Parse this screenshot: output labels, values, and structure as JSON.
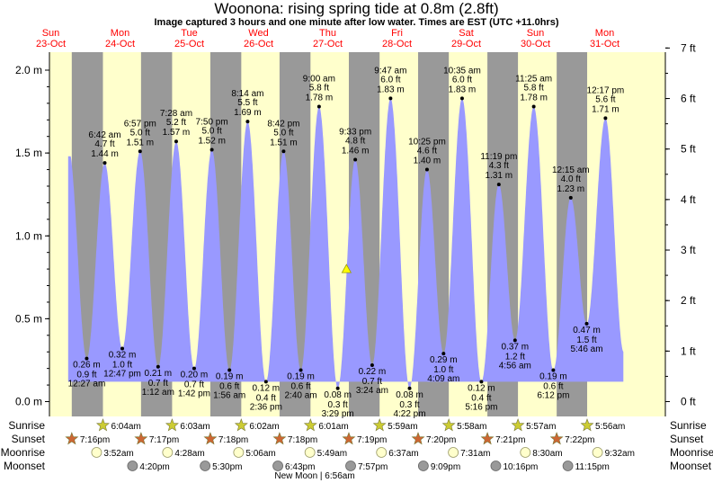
{
  "title": "Woonona: rising  spring tide at 0.8m (2.8ft)",
  "subtitle": "Image captured 3 hours and one minute after low water. Times are EST (UTC +11.0hrs)",
  "colors": {
    "day": "#ffffcc",
    "night": "#999999",
    "tide": "#9999ff",
    "date_label": "#ff0000",
    "capture_marker": "#ffff00",
    "sun_star": "#cccc33",
    "sunset_star": "#cc6633",
    "moonrise": "#ffffcc",
    "moonset": "#999999"
  },
  "days": [
    {
      "weekday": "Sun",
      "date": "23-Oct"
    },
    {
      "weekday": "Mon",
      "date": "24-Oct"
    },
    {
      "weekday": "Tue",
      "date": "25-Oct"
    },
    {
      "weekday": "Wed",
      "date": "26-Oct"
    },
    {
      "weekday": "Thu",
      "date": "27-Oct"
    },
    {
      "weekday": "Fri",
      "date": "28-Oct"
    },
    {
      "weekday": "Sat",
      "date": "29-Oct"
    },
    {
      "weekday": "Sun",
      "date": "30-Oct"
    },
    {
      "weekday": "Mon",
      "date": "31-Oct"
    }
  ],
  "chart_data": {
    "type": "area",
    "title": "Woonona: rising  spring tide at 0.8m (2.8ft)",
    "x_unit": "hours from 00:00 on Sun 23-Oct (EST)",
    "x_range": [
      0,
      216
    ],
    "left_axis": {
      "unit": "m",
      "ticks": [
        "0.0 m",
        "0.5 m",
        "1.0 m",
        "1.5 m",
        "2.0 m"
      ],
      "tick_values": [
        0,
        0.5,
        1,
        1.5,
        2
      ],
      "range": [
        -0.08,
        2.14
      ]
    },
    "right_axis": {
      "unit": "ft",
      "ticks": [
        "0 ft",
        "1 ft",
        "2 ft",
        "3 ft",
        "4 ft",
        "5 ft",
        "6 ft",
        "7 ft"
      ],
      "tick_values": [
        0,
        1,
        2,
        3,
        4,
        5,
        6,
        7
      ]
    },
    "night_intervals": [
      [
        19.27,
        30.07
      ],
      [
        43.28,
        54.05
      ],
      [
        67.3,
        78.03
      ],
      [
        91.3,
        102.02
      ],
      [
        115.32,
        125.98
      ],
      [
        139.33,
        149.97
      ],
      [
        163.35,
        173.95
      ],
      [
        187.37,
        197.93
      ]
    ],
    "extremes": [
      {
        "type": "low",
        "time_label": "12:27 am",
        "ft": "0.9 ft",
        "m": "0.26 m",
        "hour": 24.45,
        "value": 0.26,
        "label_pos": "below"
      },
      {
        "type": "high",
        "time_label": "6:42 am",
        "ft": "4.7 ft",
        "m": "1.44 m",
        "hour": 30.7,
        "value": 1.44,
        "label_pos": "above"
      },
      {
        "type": "low",
        "time_label": "12:47 pm",
        "ft": "1.0 ft",
        "m": "0.32 m",
        "hour": 36.78,
        "value": 0.32,
        "label_pos": "below"
      },
      {
        "type": "high",
        "time_label": "6:57 pm",
        "ft": "5.0 ft",
        "m": "1.51 m",
        "hour": 42.95,
        "value": 1.51,
        "label_pos": "above"
      },
      {
        "type": "low",
        "time_label": "1:12 am",
        "ft": "0.7 ft",
        "m": "0.21 m",
        "hour": 49.2,
        "value": 0.21,
        "label_pos": "below"
      },
      {
        "type": "high",
        "time_label": "7:28 am",
        "ft": "5.2 ft",
        "m": "1.57 m",
        "hour": 55.47,
        "value": 1.57,
        "label_pos": "above"
      },
      {
        "type": "low",
        "time_label": "1:42 pm",
        "ft": "0.7 ft",
        "m": "0.20 m",
        "hour": 61.7,
        "value": 0.2,
        "label_pos": "below"
      },
      {
        "type": "high",
        "time_label": "7:50 pm",
        "ft": "5.0 ft",
        "m": "1.52 m",
        "hour": 67.83,
        "value": 1.52,
        "label_pos": "above"
      },
      {
        "type": "low",
        "time_label": "1:56 am",
        "ft": "0.6 ft",
        "m": "0.19 m",
        "hour": 73.93,
        "value": 0.19,
        "label_pos": "below"
      },
      {
        "type": "high",
        "time_label": "8:14 am",
        "ft": "5.5 ft",
        "m": "1.69 m",
        "hour": 80.23,
        "value": 1.69,
        "label_pos": "above"
      },
      {
        "type": "low",
        "time_label": "2:36 pm",
        "ft": "0.4 ft",
        "m": "0.12 m",
        "hour": 86.6,
        "value": 0.12,
        "label_pos": "below"
      },
      {
        "type": "high",
        "time_label": "8:42 pm",
        "ft": "5.0 ft",
        "m": "1.51 m",
        "hour": 92.7,
        "value": 1.51,
        "label_pos": "above"
      },
      {
        "type": "low",
        "time_label": "2:40 am",
        "ft": "0.6 ft",
        "m": "0.19 m",
        "hour": 98.67,
        "value": 0.19,
        "label_pos": "below"
      },
      {
        "type": "high",
        "time_label": "9:00 am",
        "ft": "5.8 ft",
        "m": "1.78 m",
        "hour": 105.0,
        "value": 1.78,
        "label_pos": "above"
      },
      {
        "type": "low",
        "time_label": "3:29 pm",
        "ft": "0.3 ft",
        "m": "0.08 m",
        "hour": 111.48,
        "value": 0.08,
        "label_pos": "below"
      },
      {
        "type": "high",
        "time_label": "9:33 pm",
        "ft": "4.8 ft",
        "m": "1.46 m",
        "hour": 117.55,
        "value": 1.46,
        "label_pos": "above"
      },
      {
        "type": "low",
        "time_label": "3:24 am",
        "ft": "0.7 ft",
        "m": "0.22 m",
        "hour": 123.4,
        "value": 0.22,
        "label_pos": "below"
      },
      {
        "type": "high",
        "time_label": "9:47 am",
        "ft": "6.0 ft",
        "m": "1.83 m",
        "hour": 129.78,
        "value": 1.83,
        "label_pos": "above"
      },
      {
        "type": "low",
        "time_label": "4:22 pm",
        "ft": "0.3 ft",
        "m": "0.08 m",
        "hour": 136.37,
        "value": 0.08,
        "label_pos": "below"
      },
      {
        "type": "high",
        "time_label": "10:25 pm",
        "ft": "4.6 ft",
        "m": "1.40 m",
        "hour": 142.42,
        "value": 1.4,
        "label_pos": "above"
      },
      {
        "type": "low",
        "time_label": "4:09 am",
        "ft": "1.0 ft",
        "m": "0.29 m",
        "hour": 148.15,
        "value": 0.29,
        "label_pos": "below"
      },
      {
        "type": "high",
        "time_label": "10:35 am",
        "ft": "6.0 ft",
        "m": "1.83 m",
        "hour": 154.58,
        "value": 1.83,
        "label_pos": "above"
      },
      {
        "type": "low",
        "time_label": "5:16 pm",
        "ft": "0.4 ft",
        "m": "0.12 m",
        "hour": 161.27,
        "value": 0.12,
        "label_pos": "below"
      },
      {
        "type": "high",
        "time_label": "11:19 pm",
        "ft": "4.3 ft",
        "m": "1.31 m",
        "hour": 167.32,
        "value": 1.31,
        "label_pos": "above"
      },
      {
        "type": "low",
        "time_label": "4:56 am",
        "ft": "1.2 ft",
        "m": "0.37 m",
        "hour": 172.93,
        "value": 0.37,
        "label_pos": "below"
      },
      {
        "type": "high",
        "time_label": "11:25 am",
        "ft": "5.8 ft",
        "m": "1.78 m",
        "hour": 179.42,
        "value": 1.78,
        "label_pos": "above"
      },
      {
        "type": "low",
        "time_label": "6:12 pm",
        "ft": "0.6 ft",
        "m": "0.19 m",
        "hour": 186.2,
        "value": 0.19,
        "label_pos": "below"
      },
      {
        "type": "high",
        "time_label": "12:15 am",
        "ft": "4.0 ft",
        "m": "1.23 m",
        "hour": 192.25,
        "value": 1.23,
        "label_pos": "above"
      },
      {
        "type": "low",
        "time_label": "5:46 am",
        "ft": "1.5 ft",
        "m": "0.47 m",
        "hour": 197.77,
        "value": 0.47,
        "label_pos": "right"
      },
      {
        "type": "high",
        "time_label": "12:17 pm",
        "ft": "5.6 ft",
        "m": "1.71 m",
        "hour": 204.28,
        "value": 1.71,
        "label_pos": "above"
      }
    ],
    "curve_start": {
      "hour": 18.0,
      "value": 1.48
    },
    "curve_end": {
      "hour": 210.5,
      "value": 0.35
    },
    "current": {
      "hour": 114.5,
      "value": 0.8,
      "marker": "triangle"
    }
  },
  "astro": {
    "row_labels": [
      "Sunrise",
      "Sunset",
      "Moonrise",
      "Moonset"
    ],
    "sunrise": [
      {
        "hour": 30.07,
        "label": "6:04am"
      },
      {
        "hour": 54.05,
        "label": "6:03am"
      },
      {
        "hour": 78.03,
        "label": "6:02am"
      },
      {
        "hour": 102.02,
        "label": "6:01am"
      },
      {
        "hour": 125.98,
        "label": "5:59am"
      },
      {
        "hour": 149.97,
        "label": "5:58am"
      },
      {
        "hour": 173.95,
        "label": "5:57am"
      },
      {
        "hour": 197.93,
        "label": "5:56am"
      }
    ],
    "sunset": [
      {
        "hour": 19.27,
        "label": "7:16pm"
      },
      {
        "hour": 43.28,
        "label": "7:17pm"
      },
      {
        "hour": 67.3,
        "label": "7:18pm"
      },
      {
        "hour": 91.3,
        "label": "7:18pm"
      },
      {
        "hour": 115.32,
        "label": "7:19pm"
      },
      {
        "hour": 139.33,
        "label": "7:20pm"
      },
      {
        "hour": 163.35,
        "label": "7:21pm"
      },
      {
        "hour": 187.37,
        "label": "7:22pm"
      }
    ],
    "moonrise": [
      {
        "hour": 27.87,
        "label": "3:52am"
      },
      {
        "hour": 52.47,
        "label": "4:28am"
      },
      {
        "hour": 77.1,
        "label": "5:06am"
      },
      {
        "hour": 101.82,
        "label": "5:49am"
      },
      {
        "hour": 126.62,
        "label": "6:37am"
      },
      {
        "hour": 151.52,
        "label": "7:31am"
      },
      {
        "hour": 176.5,
        "label": "8:30am"
      },
      {
        "hour": 201.53,
        "label": "9:32am"
      }
    ],
    "moonset": [
      {
        "hour": 40.33,
        "label": "4:20pm"
      },
      {
        "hour": 65.5,
        "label": "5:30pm"
      },
      {
        "hour": 90.72,
        "label": "6:43pm"
      },
      {
        "hour": 115.95,
        "label": "7:57pm"
      },
      {
        "hour": 141.15,
        "label": "9:09pm"
      },
      {
        "hour": 166.27,
        "label": "10:16pm"
      },
      {
        "hour": 191.25,
        "label": "11:15pm"
      }
    ],
    "moon_phase": "New Moon | 6:56am"
  }
}
